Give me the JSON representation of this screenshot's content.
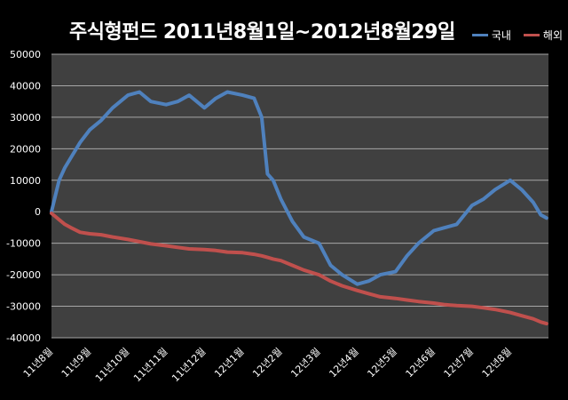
{
  "chart_data": {
    "type": "line",
    "title": "주식형펀드  2011년8월1일~2012년8월29일",
    "xlabel": "",
    "ylabel": "",
    "ylim": [
      -40000,
      50000
    ],
    "y_ticks": [
      "50000",
      "40000",
      "30000",
      "20000",
      "10000",
      "0",
      "-10000",
      "-20000",
      "-30000",
      "-40000"
    ],
    "x_tick_labels": [
      "11년8월",
      "11년9월",
      "11년10월",
      "11년11월",
      "11년12월",
      "12년1월",
      "12년2월",
      "12년3월",
      "12년4월",
      "12년5월",
      "12년6월",
      "12년7월",
      "12년8월"
    ],
    "grid": true,
    "legend_position": "top-right",
    "x_month_index": [
      0,
      0.1,
      0.2,
      0.35,
      0.5,
      0.75,
      1.0,
      1.3,
      1.6,
      2.0,
      2.3,
      2.6,
      3.0,
      3.3,
      3.6,
      4.0,
      4.3,
      4.6,
      5.0,
      5.3,
      5.5,
      5.65,
      5.8,
      6.0,
      6.3,
      6.6,
      7.0,
      7.3,
      7.6,
      8.0,
      8.3,
      8.6,
      9.0,
      9.3,
      9.6,
      10.0,
      10.3,
      10.6,
      11.0,
      11.3,
      11.6,
      12.0,
      12.3,
      12.6,
      12.8,
      12.95
    ],
    "series": [
      {
        "name": "국내",
        "color": "#4f81bd",
        "values": [
          0,
          5000,
          10000,
          14000,
          17000,
          22000,
          26000,
          29000,
          33000,
          37000,
          38000,
          35000,
          34000,
          35000,
          37000,
          33000,
          36000,
          38000,
          37000,
          36000,
          30000,
          12000,
          10000,
          4000,
          -3000,
          -8000,
          -10000,
          -17000,
          -20000,
          -23000,
          -22000,
          -20000,
          -19000,
          -14000,
          -10000,
          -6000,
          -5000,
          -4000,
          2000,
          4000,
          7000,
          10000,
          7000,
          3000,
          -1000,
          -2000
        ]
      },
      {
        "name": "해외",
        "color": "#c0504d",
        "values": [
          -500,
          -1500,
          -2500,
          -4000,
          -5000,
          -6500,
          -7000,
          -7300,
          -8000,
          -8800,
          -9500,
          -10200,
          -10800,
          -11300,
          -11800,
          -12000,
          -12300,
          -12800,
          -13000,
          -13500,
          -14000,
          -14500,
          -15000,
          -15500,
          -17000,
          -18500,
          -20000,
          -22000,
          -23500,
          -25000,
          -26000,
          -27000,
          -27500,
          -28000,
          -28500,
          -29000,
          -29500,
          -29800,
          -30000,
          -30500,
          -31000,
          -32000,
          -33000,
          -34000,
          -35000,
          -35500
        ]
      }
    ]
  }
}
